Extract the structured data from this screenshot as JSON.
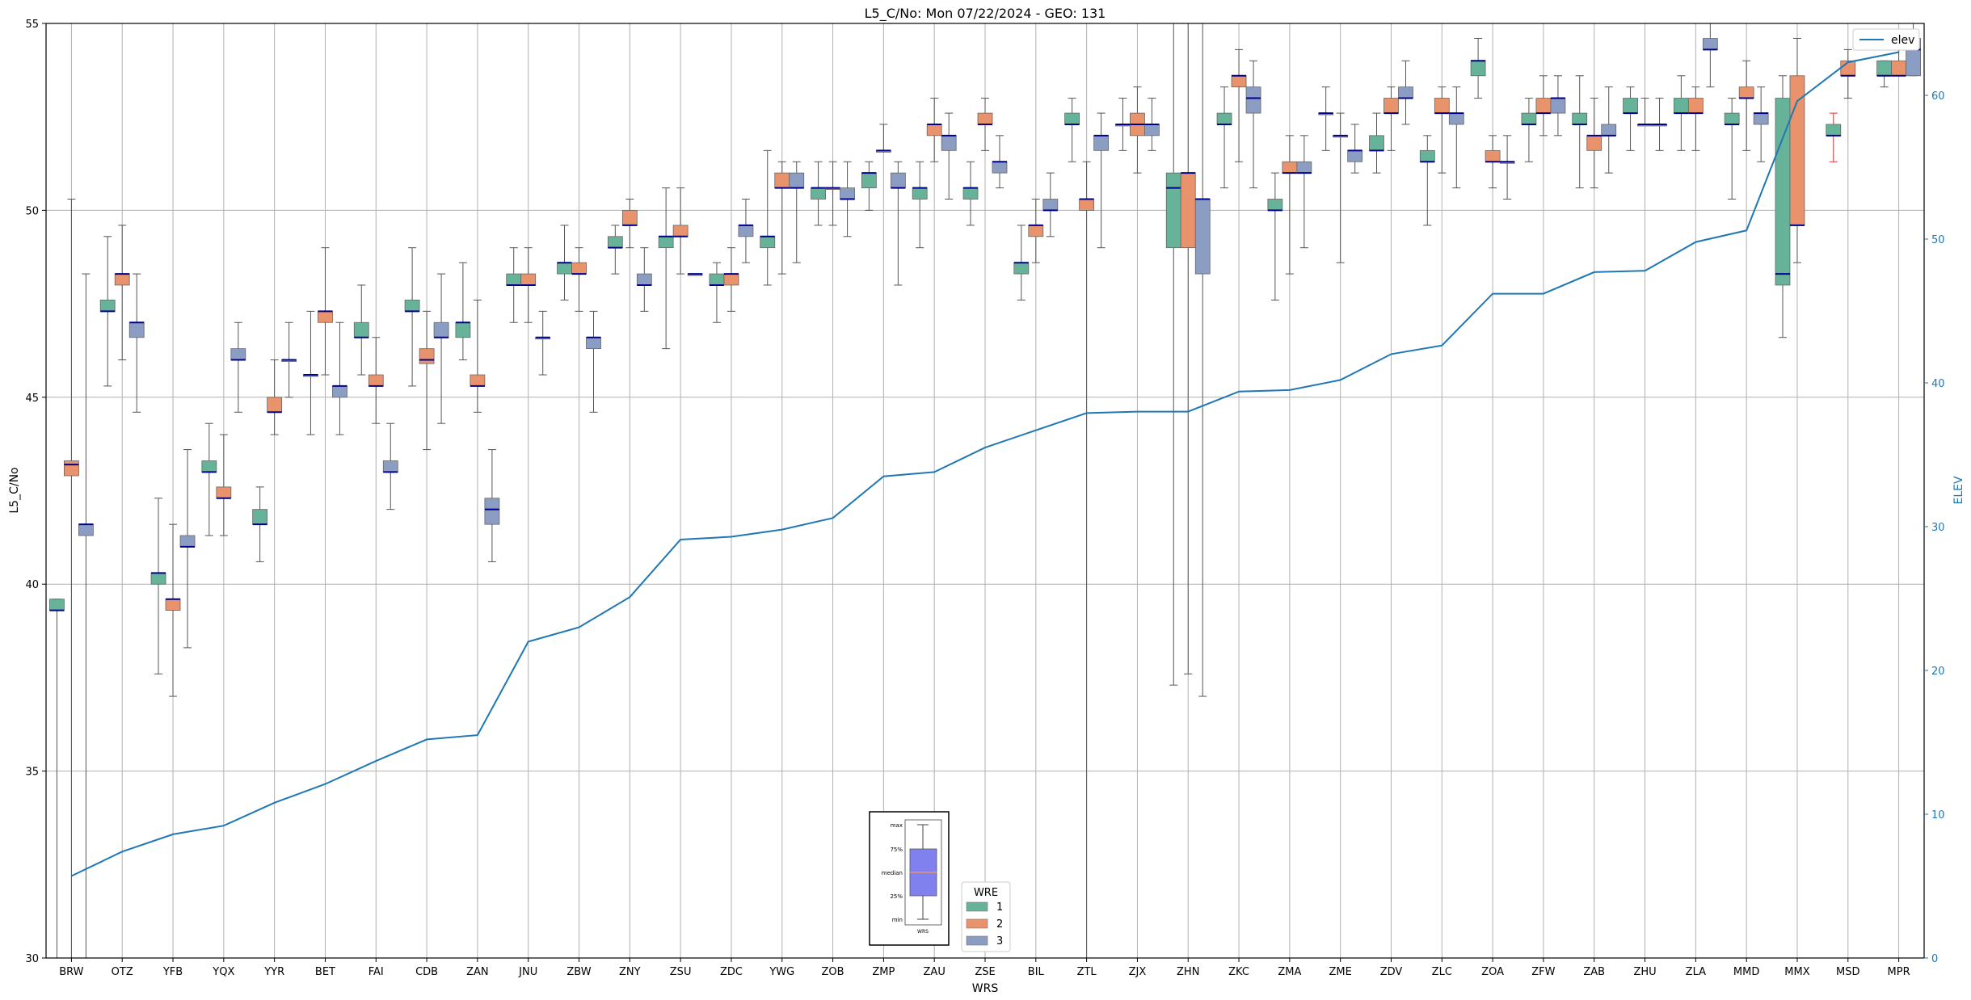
{
  "chart_data": {
    "type": "box",
    "title": "L5_C/No: Mon 07/22/2024 - GEO: 131",
    "xlabel": "WRS",
    "ylabel": "L5_C/No",
    "y2label": "ELEV",
    "ylim": [
      30,
      55
    ],
    "y2lim": [
      0,
      65
    ],
    "yticks": [
      30,
      35,
      40,
      45,
      50,
      55
    ],
    "y2ticks": [
      0,
      10,
      20,
      30,
      40,
      50,
      60
    ],
    "grid": true,
    "categories": [
      "BRW",
      "OTZ",
      "YFB",
      "YQX",
      "YYR",
      "BET",
      "FAI",
      "CDB",
      "ZAN",
      "JNU",
      "ZBW",
      "ZNY",
      "ZSU",
      "ZDC",
      "YWG",
      "ZOB",
      "ZMP",
      "ZAU",
      "ZSE",
      "BIL",
      "ZTL",
      "ZJX",
      "ZHN",
      "ZKC",
      "ZMA",
      "ZME",
      "ZDV",
      "ZLC",
      "ZOA",
      "ZFW",
      "ZAB",
      "ZHU",
      "ZLA",
      "MMD",
      "MMX",
      "MSD",
      "MPR"
    ],
    "colors": {
      "wre1": "#66b39a",
      "wre2": "#e8936c",
      "wre3": "#8c9dc4",
      "median": "#00008b",
      "elev": "#1f77b4",
      "whisker": "#555555"
    },
    "legend_wre": {
      "title": "WRE",
      "labels": [
        "1",
        "2",
        "3"
      ],
      "placement": "bottom-center"
    },
    "legend_elev": {
      "label": "elev",
      "placement": "top-right"
    },
    "inset_key": {
      "labels": [
        "max",
        "75%",
        "median",
        "25%",
        "min"
      ],
      "xlabel": "WRS"
    },
    "elev": [
      5.7,
      7.4,
      8.6,
      9.2,
      10.8,
      12.1,
      13.7,
      15.2,
      15.5,
      22.0,
      23.0,
      25.1,
      29.1,
      29.3,
      29.8,
      30.6,
      33.5,
      33.8,
      35.5,
      36.7,
      37.9,
      38.0,
      38.0,
      39.4,
      39.5,
      40.2,
      42.0,
      42.6,
      46.2,
      46.2,
      47.7,
      47.8,
      49.8,
      50.6,
      59.6,
      62.3,
      63.0
    ],
    "boxes": [
      [
        {
          "wre": 1,
          "min": 30,
          "q1": 39.3,
          "med": 39.3,
          "q3": 39.6,
          "max": 39.6
        },
        {
          "wre": 2,
          "min": 30,
          "q1": 42.9,
          "med": 43.2,
          "q3": 43.3,
          "max": 50.3
        },
        {
          "wre": 3,
          "min": 30,
          "q1": 41.3,
          "med": 41.6,
          "q3": 41.6,
          "max": 48.3
        }
      ],
      [
        {
          "wre": 1,
          "min": 45.3,
          "q1": 47.3,
          "med": 47.3,
          "q3": 47.6,
          "max": 49.3
        },
        {
          "wre": 2,
          "min": 46.0,
          "q1": 48.0,
          "med": 48.3,
          "q3": 48.3,
          "max": 49.6
        },
        {
          "wre": 3,
          "min": 44.6,
          "q1": 46.6,
          "med": 47.0,
          "q3": 47.0,
          "max": 48.3
        }
      ],
      [
        {
          "wre": 1,
          "min": 37.6,
          "q1": 40.0,
          "med": 40.3,
          "q3": 40.3,
          "max": 42.3
        },
        {
          "wre": 2,
          "min": 37.0,
          "q1": 39.3,
          "med": 39.6,
          "q3": 39.6,
          "max": 41.6
        },
        {
          "wre": 3,
          "min": 38.3,
          "q1": 41.0,
          "med": 41.0,
          "q3": 41.3,
          "max": 43.6
        }
      ],
      [
        {
          "wre": 1,
          "min": 41.3,
          "q1": 43.0,
          "med": 43.0,
          "q3": 43.3,
          "max": 44.3
        },
        {
          "wre": 2,
          "min": 41.3,
          "q1": 42.3,
          "med": 42.3,
          "q3": 42.6,
          "max": 44.0
        },
        {
          "wre": 3,
          "min": 44.6,
          "q1": 46.0,
          "med": 46.0,
          "q3": 46.3,
          "max": 47.0
        }
      ],
      [
        {
          "wre": 1,
          "min": 40.6,
          "q1": 41.6,
          "med": 41.6,
          "q3": 42.0,
          "max": 42.6
        },
        {
          "wre": 2,
          "min": 44.0,
          "q1": 44.6,
          "med": 44.6,
          "q3": 45.0,
          "max": 46.0
        },
        {
          "wre": 3,
          "min": 45.0,
          "q1": 46.0,
          "med": 46.0,
          "q3": 46.0,
          "max": 47.0
        }
      ],
      [
        {
          "wre": 1,
          "min": 44.0,
          "q1": 45.6,
          "med": 45.6,
          "q3": 45.6,
          "max": 47.3
        },
        {
          "wre": 2,
          "min": 45.6,
          "q1": 47.0,
          "med": 47.3,
          "q3": 47.3,
          "max": 49.0
        },
        {
          "wre": 3,
          "min": 44.0,
          "q1": 45.0,
          "med": 45.3,
          "q3": 45.3,
          "max": 47.0
        }
      ],
      [
        {
          "wre": 1,
          "min": 45.6,
          "q1": 46.6,
          "med": 46.6,
          "q3": 47.0,
          "max": 48.0
        },
        {
          "wre": 2,
          "min": 44.3,
          "q1": 45.3,
          "med": 45.3,
          "q3": 45.6,
          "max": 46.6
        },
        {
          "wre": 3,
          "min": 42.0,
          "q1": 43.0,
          "med": 43.0,
          "q3": 43.3,
          "max": 44.3
        }
      ],
      [
        {
          "wre": 1,
          "min": 45.3,
          "q1": 47.3,
          "med": 47.3,
          "q3": 47.6,
          "max": 49.0
        },
        {
          "wre": 2,
          "min": 43.6,
          "q1": 45.9,
          "med": 46.0,
          "q3": 46.3,
          "max": 47.3
        },
        {
          "wre": 3,
          "min": 44.3,
          "q1": 46.6,
          "med": 46.6,
          "q3": 47.0,
          "max": 48.3
        }
      ],
      [
        {
          "wre": 1,
          "min": 46.0,
          "q1": 46.6,
          "med": 47.0,
          "q3": 47.0,
          "max": 48.6
        },
        {
          "wre": 2,
          "min": 44.6,
          "q1": 45.3,
          "med": 45.3,
          "q3": 45.6,
          "max": 47.6
        },
        {
          "wre": 3,
          "min": 40.6,
          "q1": 41.6,
          "med": 42.0,
          "q3": 42.3,
          "max": 43.6
        }
      ],
      [
        {
          "wre": 1,
          "min": 47.0,
          "q1": 48.0,
          "med": 48.0,
          "q3": 48.3,
          "max": 49.0
        },
        {
          "wre": 2,
          "min": 47.0,
          "q1": 48.0,
          "med": 48.0,
          "q3": 48.3,
          "max": 49.0
        },
        {
          "wre": 3,
          "min": 45.6,
          "q1": 46.6,
          "med": 46.6,
          "q3": 46.6,
          "max": 47.3
        }
      ],
      [
        {
          "wre": 1,
          "min": 47.6,
          "q1": 48.3,
          "med": 48.6,
          "q3": 48.6,
          "max": 49.6
        },
        {
          "wre": 2,
          "min": 47.3,
          "q1": 48.3,
          "med": 48.3,
          "q3": 48.6,
          "max": 49.0
        },
        {
          "wre": 3,
          "min": 44.6,
          "q1": 46.3,
          "med": 46.6,
          "q3": 46.6,
          "max": 47.3
        }
      ],
      [
        {
          "wre": 1,
          "min": 48.3,
          "q1": 49.0,
          "med": 49.0,
          "q3": 49.3,
          "max": 49.6
        },
        {
          "wre": 2,
          "min": 49.0,
          "q1": 49.6,
          "med": 49.6,
          "q3": 50.0,
          "max": 50.3
        },
        {
          "wre": 3,
          "min": 47.3,
          "q1": 48.0,
          "med": 48.0,
          "q3": 48.3,
          "max": 49.0
        }
      ],
      [
        {
          "wre": 1,
          "min": 46.3,
          "q1": 49.0,
          "med": 49.3,
          "q3": 49.3,
          "max": 50.6
        },
        {
          "wre": 2,
          "min": 48.3,
          "q1": 49.3,
          "med": 49.3,
          "q3": 49.6,
          "max": 50.6
        },
        {
          "wre": 3,
          "min": 48.3,
          "q1": 48.3,
          "med": 48.3,
          "q3": 48.3,
          "max": 48.3
        }
      ],
      [
        {
          "wre": 1,
          "min": 47.0,
          "q1": 48.0,
          "med": 48.0,
          "q3": 48.3,
          "max": 48.6
        },
        {
          "wre": 2,
          "min": 47.3,
          "q1": 48.0,
          "med": 48.3,
          "q3": 48.3,
          "max": 49.0
        },
        {
          "wre": 3,
          "min": 48.6,
          "q1": 49.3,
          "med": 49.6,
          "q3": 49.6,
          "max": 50.3
        }
      ],
      [
        {
          "wre": 1,
          "min": 48.0,
          "q1": 49.0,
          "med": 49.3,
          "q3": 49.3,
          "max": 51.6
        },
        {
          "wre": 2,
          "min": 48.3,
          "q1": 50.6,
          "med": 50.6,
          "q3": 51.0,
          "max": 51.3
        },
        {
          "wre": 3,
          "min": 48.6,
          "q1": 50.6,
          "med": 50.6,
          "q3": 51.0,
          "max": 51.3
        }
      ],
      [
        {
          "wre": 1,
          "min": 49.6,
          "q1": 50.3,
          "med": 50.6,
          "q3": 50.6,
          "max": 51.3
        },
        {
          "wre": 2,
          "min": 49.6,
          "q1": 50.6,
          "med": 50.6,
          "q3": 50.6,
          "max": 51.3
        },
        {
          "wre": 3,
          "min": 49.3,
          "q1": 50.3,
          "med": 50.3,
          "q3": 50.6,
          "max": 51.3
        }
      ],
      [
        {
          "wre": 1,
          "min": 50.0,
          "q1": 50.6,
          "med": 51.0,
          "q3": 51.0,
          "max": 51.3
        },
        {
          "wre": 2,
          "min": 51.6,
          "q1": 51.6,
          "med": 51.6,
          "q3": 51.6,
          "max": 52.3
        },
        {
          "wre": 3,
          "min": 48.0,
          "q1": 50.6,
          "med": 50.6,
          "q3": 51.0,
          "max": 51.3
        }
      ],
      [
        {
          "wre": 1,
          "min": 49.0,
          "q1": 50.3,
          "med": 50.6,
          "q3": 50.6,
          "max": 51.3
        },
        {
          "wre": 2,
          "min": 51.3,
          "q1": 52.0,
          "med": 52.3,
          "q3": 52.3,
          "max": 53.0
        },
        {
          "wre": 3,
          "min": 50.3,
          "q1": 51.6,
          "med": 52.0,
          "q3": 52.0,
          "max": 52.6
        }
      ],
      [
        {
          "wre": 1,
          "min": 49.6,
          "q1": 50.3,
          "med": 50.6,
          "q3": 50.6,
          "max": 51.3
        },
        {
          "wre": 2,
          "min": 51.6,
          "q1": 52.3,
          "med": 52.3,
          "q3": 52.6,
          "max": 53.0
        },
        {
          "wre": 3,
          "min": 50.6,
          "q1": 51.0,
          "med": 51.3,
          "q3": 51.3,
          "max": 52.0
        }
      ],
      [
        {
          "wre": 1,
          "min": 47.6,
          "q1": 48.3,
          "med": 48.6,
          "q3": 48.6,
          "max": 49.6
        },
        {
          "wre": 2,
          "min": 48.6,
          "q1": 49.3,
          "med": 49.6,
          "q3": 49.6,
          "max": 50.3
        },
        {
          "wre": 3,
          "min": 49.3,
          "q1": 50.0,
          "med": 50.0,
          "q3": 50.3,
          "max": 51.0
        }
      ],
      [
        {
          "wre": 1,
          "min": 51.3,
          "q1": 52.3,
          "med": 52.3,
          "q3": 52.6,
          "max": 53.0
        },
        {
          "wre": 2,
          "min": 30,
          "q1": 50.0,
          "med": 50.3,
          "q3": 50.3,
          "max": 51.3
        },
        {
          "wre": 3,
          "min": 49.0,
          "q1": 51.6,
          "med": 52.0,
          "q3": 52.0,
          "max": 52.6
        }
      ],
      [
        {
          "wre": 1,
          "min": 51.6,
          "q1": 52.3,
          "med": 52.3,
          "q3": 52.3,
          "max": 53.0
        },
        {
          "wre": 2,
          "min": 51.0,
          "q1": 52.0,
          "med": 52.3,
          "q3": 52.6,
          "max": 53.3
        },
        {
          "wre": 3,
          "min": 51.6,
          "q1": 52.0,
          "med": 52.3,
          "q3": 52.3,
          "max": 53.0
        }
      ],
      [
        {
          "wre": 1,
          "min": 37.3,
          "q1": 49.0,
          "med": 50.6,
          "q3": 51.0,
          "max": 55.0
        },
        {
          "wre": 2,
          "min": 37.6,
          "q1": 49.0,
          "med": 51.0,
          "q3": 51.0,
          "max": 55.0
        },
        {
          "wre": 3,
          "min": 37.0,
          "q1": 48.3,
          "med": 50.3,
          "q3": 50.3,
          "max": 55.0
        }
      ],
      [
        {
          "wre": 1,
          "min": 50.6,
          "q1": 52.3,
          "med": 52.3,
          "q3": 52.6,
          "max": 53.3
        },
        {
          "wre": 2,
          "min": 51.3,
          "q1": 53.3,
          "med": 53.6,
          "q3": 53.6,
          "max": 54.3
        },
        {
          "wre": 3,
          "min": 50.6,
          "q1": 52.6,
          "med": 53.0,
          "q3": 53.3,
          "max": 54.0
        }
      ],
      [
        {
          "wre": 1,
          "min": 47.6,
          "q1": 50.0,
          "med": 50.0,
          "q3": 50.3,
          "max": 51.0
        },
        {
          "wre": 2,
          "min": 48.3,
          "q1": 51.0,
          "med": 51.0,
          "q3": 51.3,
          "max": 52.0
        },
        {
          "wre": 3,
          "min": 49.0,
          "q1": 51.0,
          "med": 51.0,
          "q3": 51.3,
          "max": 52.0
        }
      ],
      [
        {
          "wre": 1,
          "min": 51.6,
          "q1": 52.6,
          "med": 52.6,
          "q3": 52.6,
          "max": 53.3
        },
        {
          "wre": 2,
          "min": 48.6,
          "q1": 52.0,
          "med": 52.0,
          "q3": 52.0,
          "max": 52.6
        },
        {
          "wre": 3,
          "min": 51.0,
          "q1": 51.3,
          "med": 51.6,
          "q3": 51.6,
          "max": 52.3
        }
      ],
      [
        {
          "wre": 1,
          "min": 51.0,
          "q1": 51.6,
          "med": 51.6,
          "q3": 52.0,
          "max": 52.6
        },
        {
          "wre": 2,
          "min": 51.6,
          "q1": 52.6,
          "med": 52.6,
          "q3": 53.0,
          "max": 53.3
        },
        {
          "wre": 3,
          "min": 52.3,
          "q1": 53.0,
          "med": 53.0,
          "q3": 53.3,
          "max": 54.0
        }
      ],
      [
        {
          "wre": 1,
          "min": 49.6,
          "q1": 51.3,
          "med": 51.3,
          "q3": 51.6,
          "max": 52.0
        },
        {
          "wre": 2,
          "min": 51.0,
          "q1": 52.6,
          "med": 52.6,
          "q3": 53.0,
          "max": 53.3
        },
        {
          "wre": 3,
          "min": 50.6,
          "q1": 52.3,
          "med": 52.6,
          "q3": 52.6,
          "max": 53.3
        }
      ],
      [
        {
          "wre": 1,
          "min": 53.0,
          "q1": 53.6,
          "med": 54.0,
          "q3": 54.0,
          "max": 54.6
        },
        {
          "wre": 2,
          "min": 50.6,
          "q1": 51.3,
          "med": 51.3,
          "q3": 51.6,
          "max": 52.0
        },
        {
          "wre": 3,
          "min": 50.3,
          "q1": 51.3,
          "med": 51.3,
          "q3": 51.3,
          "max": 52.0
        }
      ],
      [
        {
          "wre": 1,
          "min": 51.3,
          "q1": 52.3,
          "med": 52.3,
          "q3": 52.6,
          "max": 53.0
        },
        {
          "wre": 2,
          "min": 52.0,
          "q1": 52.6,
          "med": 52.6,
          "q3": 53.0,
          "max": 53.6
        },
        {
          "wre": 3,
          "min": 52.0,
          "q1": 52.6,
          "med": 53.0,
          "q3": 53.0,
          "max": 53.6
        }
      ],
      [
        {
          "wre": 1,
          "min": 50.6,
          "q1": 52.3,
          "med": 52.3,
          "q3": 52.6,
          "max": 53.6
        },
        {
          "wre": 2,
          "min": 50.6,
          "q1": 51.6,
          "med": 52.0,
          "q3": 52.0,
          "max": 53.0
        },
        {
          "wre": 3,
          "min": 51.0,
          "q1": 52.0,
          "med": 52.0,
          "q3": 52.3,
          "max": 53.3
        }
      ],
      [
        {
          "wre": 1,
          "min": 51.6,
          "q1": 52.6,
          "med": 52.6,
          "q3": 53.0,
          "max": 53.3
        },
        {
          "wre": 2,
          "min": 52.3,
          "q1": 52.3,
          "med": 52.3,
          "q3": 52.3,
          "max": 53.0
        },
        {
          "wre": 3,
          "min": 51.6,
          "q1": 52.3,
          "med": 52.3,
          "q3": 52.3,
          "max": 53.0
        }
      ],
      [
        {
          "wre": 1,
          "min": 51.6,
          "q1": 52.6,
          "med": 52.6,
          "q3": 53.0,
          "max": 53.6
        },
        {
          "wre": 2,
          "min": 51.6,
          "q1": 52.6,
          "med": 52.6,
          "q3": 53.0,
          "max": 53.3
        },
        {
          "wre": 3,
          "min": 53.3,
          "q1": 54.3,
          "med": 54.3,
          "q3": 54.6,
          "max": 55.0
        }
      ],
      [
        {
          "wre": 1,
          "min": 50.3,
          "q1": 52.3,
          "med": 52.3,
          "q3": 52.6,
          "max": 53.0
        },
        {
          "wre": 2,
          "min": 51.6,
          "q1": 53.0,
          "med": 53.0,
          "q3": 53.3,
          "max": 54.0
        },
        {
          "wre": 3,
          "min": 51.3,
          "q1": 52.3,
          "med": 52.6,
          "q3": 52.6,
          "max": 53.3
        }
      ],
      [
        {
          "wre": 1,
          "min": 46.6,
          "q1": 48.0,
          "med": 48.3,
          "q3": 53.0,
          "max": 53.6
        },
        {
          "wre": 2,
          "min": 48.6,
          "q1": 49.6,
          "med": 49.6,
          "q3": 53.6,
          "max": 54.6
        },
        null
      ],
      [
        {
          "wre": 1,
          "min": 51.3,
          "q1": 52.0,
          "med": 52.0,
          "q3": 52.3,
          "max": 52.6
        },
        {
          "wre": 2,
          "min": 53.0,
          "q1": 53.6,
          "med": 53.6,
          "q3": 54.0,
          "max": 54.3
        },
        null
      ],
      [
        {
          "wre": 1,
          "min": 53.3,
          "q1": 53.6,
          "med": 53.6,
          "q3": 54.0,
          "max": 54.0
        },
        {
          "wre": 2,
          "min": 53.6,
          "q1": 53.6,
          "med": 53.6,
          "q3": 54.0,
          "max": 54.3
        },
        {
          "wre": 3,
          "min": 53.6,
          "q1": 53.6,
          "med": 54.3,
          "q3": 54.6,
          "max": 55.0
        }
      ]
    ]
  }
}
